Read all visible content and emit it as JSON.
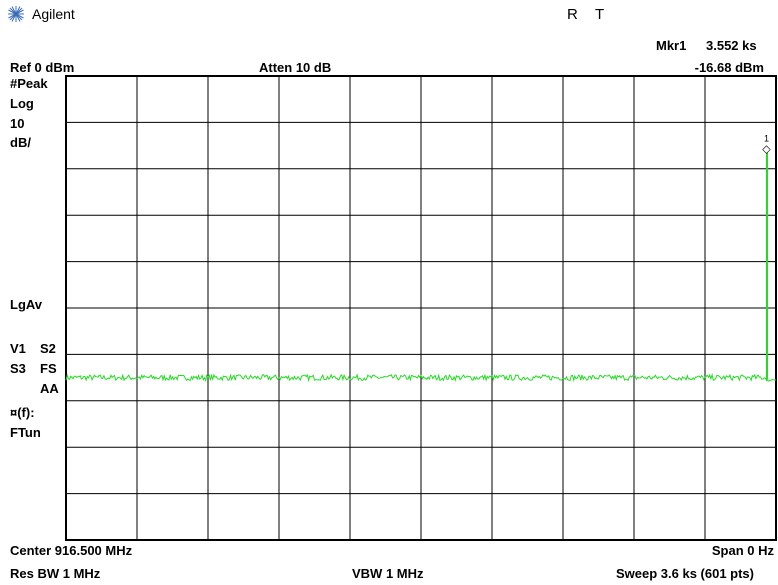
{
  "header": {
    "brand": "Agilent",
    "status_r": "R",
    "status_t": "T",
    "marker_label": "Mkr1",
    "marker_time": "3.552 ks",
    "marker_level": "-16.68 dBm",
    "ref_level": "Ref 0 dBm",
    "attenuation": "Atten 10 dB"
  },
  "left_panel": {
    "detector": "#Peak",
    "scale": "Log",
    "scale_value": "10",
    "scale_unit": "dB/",
    "average": "LgAv",
    "v1": "V1",
    "s2": "S2",
    "s3": "S3",
    "fs": "FS",
    "aa": "AA",
    "ft_label": "¤(f):",
    "ftun": "FTun"
  },
  "footer": {
    "center": "Center 916.500 MHz",
    "span": "Span 0 Hz",
    "rbw": "Res BW 1 MHz",
    "vbw": "VBW 1 MHz",
    "sweep": "Sweep 3.6 ks (601 pts)"
  },
  "marker": {
    "number": "1",
    "symbol": "◇"
  },
  "colors": {
    "trace": "#22dd22",
    "grid": "#000000",
    "background": "#ffffff"
  },
  "chart_data": {
    "type": "line",
    "x_unit": "ks",
    "xlim": [
      0,
      3.6
    ],
    "ylim": [
      -100,
      0
    ],
    "y_divisions": 10,
    "x_divisions": 10,
    "grid": true,
    "series": [
      {
        "x_start": 0,
        "x_end": 3.6,
        "baseline_dbm": -65,
        "noise_dbm": 0.6,
        "spike_x": [
          3.552
        ],
        "spike_dbm": [
          -16.68
        ],
        "tail_dbm": -65.5
      }
    ],
    "marker": {
      "x": 3.552,
      "y": -16.68
    }
  }
}
